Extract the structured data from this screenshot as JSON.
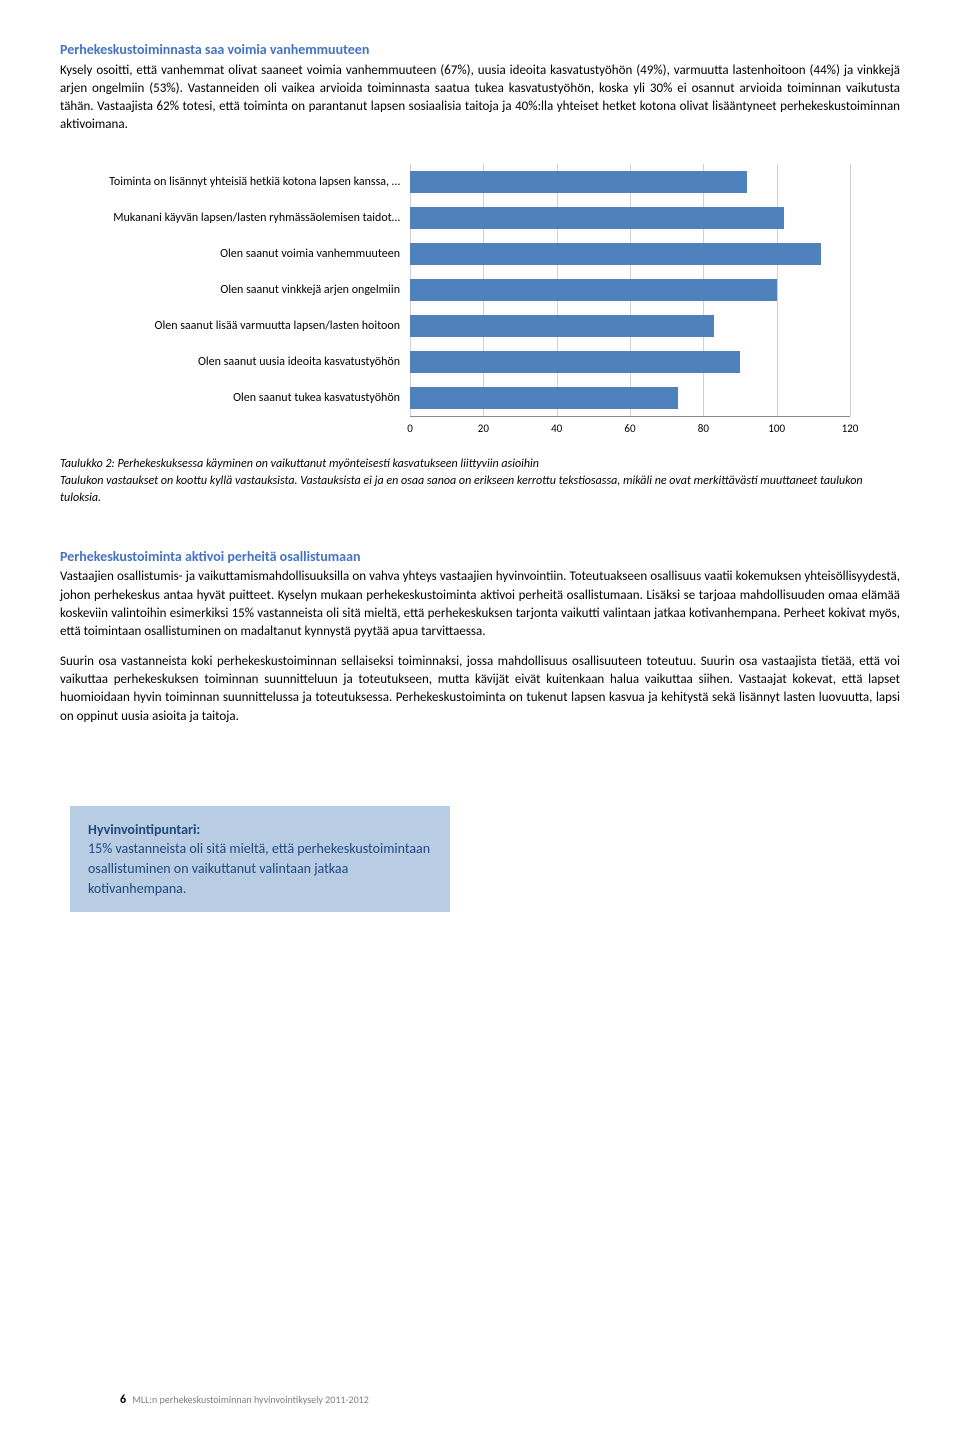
{
  "section1": {
    "title": "Perhekeskustoiminnasta saa voimia vanhemmuuteen",
    "body": "Kysely osoitti, että vanhemmat olivat saaneet voimia vanhemmuuteen (67%), uusia ideoita kasvatustyöhön (49%), varmuutta lastenhoitoon (44%) ja vinkkejä arjen ongelmiin (53%). Vastanneiden oli vaikea arvioida toiminnasta saatua tukea kasvatustyöhön, koska yli 30% ei osannut arvioida toiminnan vaikutusta tähän. Vastaajista 62% totesi, että toiminta on parantanut lapsen sosiaalisia taitoja ja 40%:lla yhteiset hetket kotona olivat lisääntyneet perhekeskustoiminnan aktivoimana."
  },
  "chart": {
    "type": "bar-horizontal",
    "bar_color": "#4f81bd",
    "grid_color": "#cfcfcf",
    "background_color": "#ffffff",
    "xlim_max": 120,
    "xtick_step": 20,
    "ticks": [
      "0",
      "20",
      "40",
      "60",
      "80",
      "100",
      "120"
    ],
    "items": [
      {
        "label": "Toiminta on lisännyt yhteisiä hetkiä kotona lapsen kanssa, …",
        "value": 92
      },
      {
        "label": "Mukanani käyvän lapsen/lasten ryhmässäolemisen taidot…",
        "value": 102
      },
      {
        "label": "Olen saanut voimia vanhemmuuteen",
        "value": 112
      },
      {
        "label": "Olen saanut vinkkejä arjen ongelmiin",
        "value": 100
      },
      {
        "label": "Olen saanut lisää varmuutta lapsen/lasten hoitoon",
        "value": 83
      },
      {
        "label": "Olen saanut uusia ideoita kasvatustyöhön",
        "value": 90
      },
      {
        "label": "Olen saanut tukea kasvatustyöhön",
        "value": 73
      }
    ]
  },
  "caption": {
    "line1": "Taulukko 2:  Perhekeskuksessa käyminen on vaikuttanut myönteisesti kasvatukseen liittyviin asioihin",
    "line2": "Taulukon vastaukset on koottu kyllä vastauksista. Vastauksista ei ja en osaa sanoa on erikseen kerrottu tekstiosassa, mikäli ne ovat merkittävästi muuttaneet taulukon tuloksia."
  },
  "section2": {
    "title": "Perhekeskustoiminta aktivoi perheitä osallistumaan",
    "p1": "Vastaajien osallistumis- ja vaikuttamismahdollisuuksilla on vahva yhteys vastaajien hyvinvointiin. Toteutuakseen osallisuus vaatii kokemuksen yhteisöllisyydestä, johon perhekeskus antaa hyvät puitteet. Kyselyn mukaan perhekeskustoiminta aktivoi perheitä osallistumaan. Lisäksi se tarjoaa mahdollisuuden omaa elämää koskeviin valintoihin esimerkiksi 15% vastanneista oli sitä mieltä, että perhekeskuksen tarjonta vaikutti valintaan jatkaa kotivanhempana. Perheet kokivat myös, että toimintaan osallistuminen on madaltanut kynnystä pyytää apua tarvittaessa.",
    "p2": "Suurin osa vastanneista koki perhekeskustoiminnan sellaiseksi toiminnaksi, jossa mahdollisuus osallisuuteen toteutuu. Suurin osa vastaajista tietää, että voi vaikuttaa perhekeskuksen toiminnan suunnitteluun ja toteutukseen, mutta kävijät eivät kuitenkaan halua vaikuttaa siihen. Vastaajat kokevat, että lapset huomioidaan hyvin toiminnan suunnittelussa ja toteutuksessa. Perhekeskustoiminta on tukenut lapsen kasvua ja kehitystä sekä lisännyt lasten luovuutta, lapsi on oppinut uusia asioita ja taitoja."
  },
  "callout": {
    "title": "Hyvinvointipuntari:",
    "text": "15% vastanneista oli sitä mieltä, että perhekeskustoimintaan osallistuminen on vaikuttanut valintaan jatkaa kotivanhempana."
  },
  "footer": {
    "page": "6",
    "text": "MLL:n perhekeskustoiminnan hyvinvointikysely 2011-2012"
  }
}
